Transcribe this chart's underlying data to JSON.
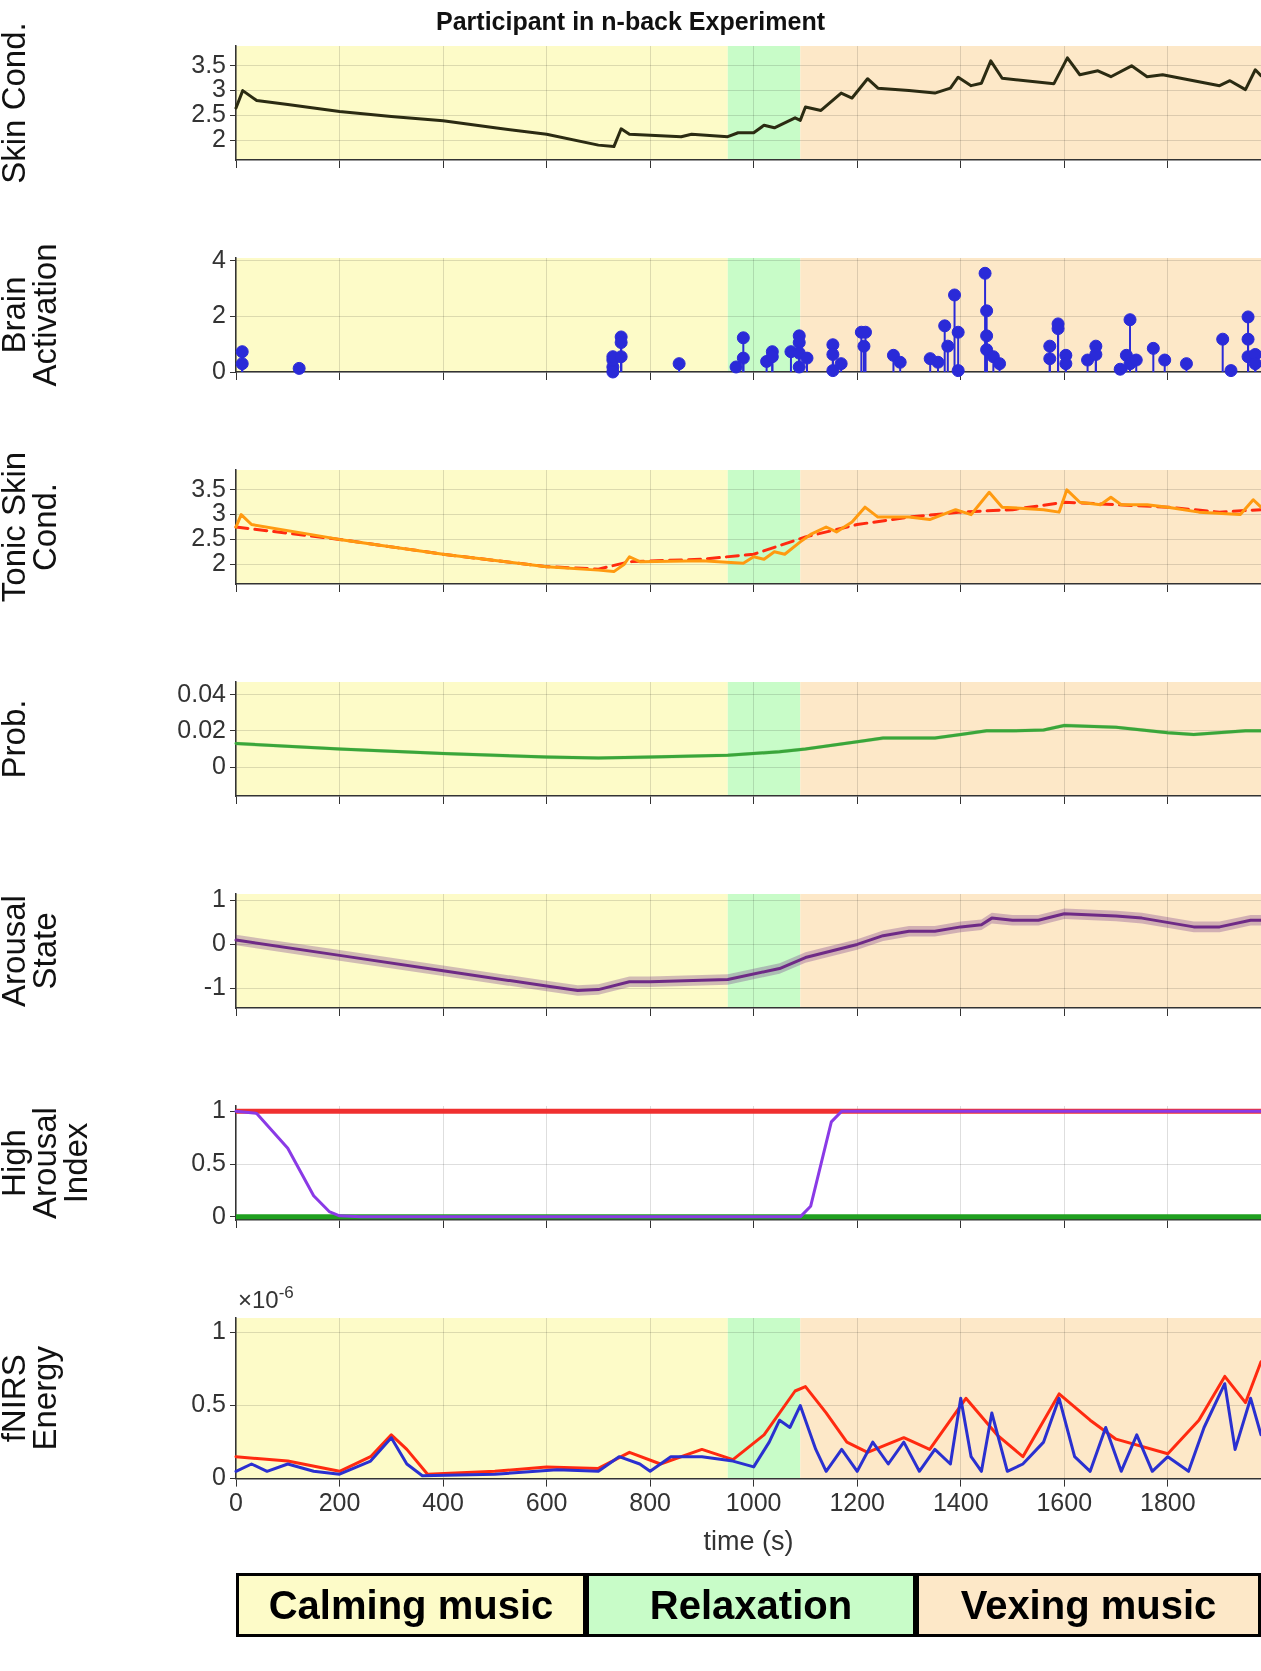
{
  "chart_data": [
    {
      "type": "line",
      "title": "Participant in n-back Experiment",
      "ylabel": "Skin Cond.",
      "xlim": [
        0,
        1980
      ],
      "xticks": [
        0,
        200,
        400,
        600,
        800,
        1000,
        1200,
        1400,
        1600,
        1800
      ],
      "ylim": [
        1.6,
        3.9
      ],
      "yticks": [
        2,
        2.5,
        3,
        3.5
      ],
      "grid": true,
      "tick_labels": "y",
      "bands": [
        {
          "axis": "x",
          "from": 0,
          "to": 950,
          "color": "#fdfbc8"
        },
        {
          "axis": "x",
          "from": 950,
          "to": 1090,
          "color": "#c8fcc8"
        },
        {
          "axis": "x",
          "from": 1090,
          "to": 1980,
          "color": "#fde8c8"
        }
      ],
      "series": [
        {
          "color": "#2b2b12",
          "x": [
            0,
            13,
            40,
            100,
            200,
            300,
            400,
            500,
            600,
            700,
            730,
            744,
            760,
            800,
            860,
            880,
            950,
            970,
            1000,
            1020,
            1040,
            1060,
            1080,
            1090,
            1100,
            1130,
            1169,
            1190,
            1220,
            1240,
            1300,
            1350,
            1380,
            1395,
            1420,
            1440,
            1458,
            1480,
            1580,
            1606,
            1630,
            1665,
            1690,
            1730,
            1760,
            1790,
            1900,
            1920,
            1950,
            1969,
            1980
          ],
          "values": [
            2.65,
            3.0,
            2.8,
            2.72,
            2.58,
            2.48,
            2.39,
            2.25,
            2.12,
            1.9,
            1.87,
            2.23,
            2.12,
            2.1,
            2.07,
            2.12,
            2.07,
            2.15,
            2.15,
            2.3,
            2.25,
            2.35,
            2.45,
            2.4,
            2.67,
            2.6,
            2.95,
            2.85,
            3.24,
            3.05,
            3.0,
            2.95,
            3.05,
            3.27,
            3.1,
            3.15,
            3.6,
            3.25,
            3.14,
            3.66,
            3.32,
            3.4,
            3.28,
            3.5,
            3.28,
            3.32,
            3.1,
            3.2,
            3.02,
            3.42,
            3.3
          ]
        }
      ]
    },
    {
      "type": "lollipop",
      "ylabel": "Brain Activation",
      "xlim": [
        0,
        1980
      ],
      "xticks": [
        0,
        200,
        400,
        600,
        800,
        1000,
        1200,
        1400,
        1600,
        1800
      ],
      "ylim": [
        0,
        4.1
      ],
      "yticks": [
        0,
        2,
        4
      ],
      "grid": true,
      "tick_labels": "y",
      "marker": "circle",
      "bands": [
        {
          "axis": "x",
          "from": 0,
          "to": 950,
          "color": "#fdfbc8"
        },
        {
          "axis": "x",
          "from": 950,
          "to": 1090,
          "color": "#c8fcc8"
        },
        {
          "axis": "x",
          "from": 1090,
          "to": 1980,
          "color": "#fde8c8"
        }
      ],
      "series": [
        {
          "color": "#2a2ad8",
          "x": [
            12,
            12,
            122,
            728,
            728,
            728,
            728,
            744,
            744,
            744,
            856,
            966,
            980,
            980,
            1025,
            1036,
            1036,
            1072,
            1088,
            1088,
            1088,
            1088,
            1103,
            1153,
            1153,
            1153,
            1169,
            1208,
            1213,
            1216,
            1270,
            1283,
            1341,
            1356,
            1369,
            1375,
            1388,
            1395,
            1395,
            1447,
            1450,
            1450,
            1450,
            1463,
            1475,
            1572,
            1572,
            1588,
            1588,
            1603,
            1603,
            1645,
            1661,
            1661,
            1708,
            1720,
            1727,
            1727,
            1739,
            1772,
            1794,
            1836,
            1906,
            1922,
            1955,
            1955,
            1955,
            1969,
            1969
          ],
          "values": [
            0.73,
            0.3,
            0.13,
            0.18,
            0,
            0.43,
            0.55,
            1.26,
            1.06,
            0.55,
            0.3,
            0.18,
            1.23,
            0.5,
            0.38,
            0.73,
            0.55,
            0.73,
            1.3,
            1.06,
            0.18,
            0.68,
            0.5,
            0.98,
            0.63,
            0.05,
            0.3,
            1.43,
            0.93,
            1.43,
            0.6,
            0.35,
            0.48,
            0.35,
            1.66,
            0.93,
            2.77,
            1.43,
            0.05,
            3.55,
            2.2,
            1.3,
            0.8,
            0.55,
            0.3,
            0.93,
            0.48,
            1.73,
            1.56,
            0.6,
            0.3,
            0.43,
            0.93,
            0.63,
            0.1,
            0.6,
            1.88,
            0.3,
            0.43,
            0.85,
            0.43,
            0.3,
            1.18,
            0.05,
            1.98,
            1.18,
            0.55,
            0.63,
            0.3
          ]
        }
      ]
    },
    {
      "type": "line",
      "ylabel": "Tonic Skin Cond.",
      "xlim": [
        0,
        1980
      ],
      "xticks": [
        0,
        200,
        400,
        600,
        800,
        1000,
        1200,
        1400,
        1600,
        1800
      ],
      "ylim": [
        1.6,
        3.9
      ],
      "yticks": [
        2,
        2.5,
        3,
        3.5
      ],
      "grid": true,
      "tick_labels": "y",
      "bands": [
        {
          "axis": "x",
          "from": 0,
          "to": 950,
          "color": "#fdfbc8"
        },
        {
          "axis": "x",
          "from": 950,
          "to": 1090,
          "color": "#c8fcc8"
        },
        {
          "axis": "x",
          "from": 1090,
          "to": 1980,
          "color": "#fde8c8"
        }
      ],
      "series": [
        {
          "color": "#ff9a10",
          "x": [
            0,
            10,
            30,
            200,
            400,
            600,
            700,
            730,
            750,
            760,
            780,
            900,
            980,
            1000,
            1020,
            1040,
            1060,
            1090,
            1110,
            1140,
            1160,
            1190,
            1215,
            1240,
            1300,
            1340,
            1390,
            1420,
            1455,
            1480,
            1560,
            1590,
            1605,
            1630,
            1670,
            1690,
            1710,
            1760,
            1800,
            1860,
            1940,
            1965,
            1980
          ],
          "values": [
            2.75,
            3.0,
            2.8,
            2.5,
            2.2,
            1.95,
            1.88,
            1.85,
            2.0,
            2.15,
            2.05,
            2.07,
            2.02,
            2.15,
            2.1,
            2.25,
            2.2,
            2.45,
            2.6,
            2.75,
            2.65,
            2.85,
            3.15,
            2.95,
            2.95,
            2.9,
            3.1,
            3.0,
            3.45,
            3.15,
            3.1,
            3.05,
            3.5,
            3.25,
            3.2,
            3.35,
            3.2,
            3.2,
            3.15,
            3.05,
            3.0,
            3.3,
            3.15
          ]
        },
        {
          "color": "#ff2a10",
          "line_style": "dashed",
          "x": [
            0,
            200,
            400,
            600,
            700,
            760,
            900,
            1000,
            1100,
            1200,
            1300,
            1400,
            1500,
            1600,
            1700,
            1800,
            1900,
            1980
          ],
          "values": [
            2.75,
            2.5,
            2.2,
            1.95,
            1.9,
            2.05,
            2.1,
            2.2,
            2.55,
            2.8,
            2.95,
            3.05,
            3.1,
            3.25,
            3.2,
            3.15,
            3.05,
            3.1
          ]
        }
      ]
    },
    {
      "type": "line",
      "ylabel": "Prob.",
      "xlim": [
        0,
        1980
      ],
      "xticks": [
        0,
        200,
        400,
        600,
        800,
        1000,
        1200,
        1400,
        1600,
        1800
      ],
      "ylim": [
        -0.016,
        0.047
      ],
      "yticks": [
        0,
        0.02,
        0.04
      ],
      "grid": true,
      "tick_labels": "y",
      "bands": [
        {
          "axis": "x",
          "from": 0,
          "to": 950,
          "color": "#fdfbc8"
        },
        {
          "axis": "x",
          "from": 950,
          "to": 1090,
          "color": "#c8fcc8"
        },
        {
          "axis": "x",
          "from": 1090,
          "to": 1980,
          "color": "#fde8c8"
        }
      ],
      "series": [
        {
          "color": "#3aa63a",
          "x": [
            0,
            200,
            400,
            600,
            700,
            800,
            950,
            1050,
            1100,
            1200,
            1250,
            1350,
            1400,
            1450,
            1500,
            1560,
            1600,
            1700,
            1800,
            1850,
            1950,
            1980
          ],
          "values": [
            0.013,
            0.01,
            0.0075,
            0.0055,
            0.005,
            0.0055,
            0.0065,
            0.0085,
            0.01,
            0.014,
            0.016,
            0.016,
            0.018,
            0.02,
            0.02,
            0.0205,
            0.023,
            0.022,
            0.019,
            0.018,
            0.02,
            0.02
          ],
          "lower": [
            0.012,
            0.009,
            0.0065,
            0.0045,
            0.004,
            0.0045,
            0.0055,
            0.0075,
            0.009,
            0.013,
            0.015,
            0.015,
            0.017,
            0.019,
            0.019,
            0.0195,
            0.022,
            0.021,
            0.018,
            0.017,
            0.019,
            0.019
          ],
          "upper": [
            0.014,
            0.011,
            0.0085,
            0.0065,
            0.006,
            0.0065,
            0.0075,
            0.0095,
            0.011,
            0.015,
            0.017,
            0.017,
            0.019,
            0.021,
            0.021,
            0.0215,
            0.024,
            0.023,
            0.02,
            0.019,
            0.021,
            0.021
          ]
        }
      ]
    },
    {
      "type": "line",
      "ylabel": "Arousal State",
      "xlim": [
        0,
        1980
      ],
      "xticks": [
        0,
        200,
        400,
        600,
        800,
        1000,
        1200,
        1400,
        1600,
        1800
      ],
      "ylim": [
        -1.45,
        1.15
      ],
      "yticks": [
        -1,
        0,
        1
      ],
      "grid": true,
      "tick_labels": "y",
      "bands": [
        {
          "axis": "x",
          "from": 0,
          "to": 950,
          "color": "#fdfbc8"
        },
        {
          "axis": "x",
          "from": 950,
          "to": 1090,
          "color": "#c8fcc8"
        },
        {
          "axis": "x",
          "from": 1090,
          "to": 1980,
          "color": "#fde8c8"
        }
      ],
      "series": [
        {
          "color": "#6e2a86",
          "x": [
            0,
            200,
            400,
            600,
            660,
            700,
            760,
            800,
            950,
            1050,
            1100,
            1200,
            1250,
            1300,
            1350,
            1400,
            1440,
            1460,
            1500,
            1550,
            1600,
            1700,
            1750,
            1850,
            1900,
            1960,
            1980
          ],
          "values": [
            0.1,
            -0.25,
            -0.6,
            -0.95,
            -1.05,
            -1.03,
            -0.85,
            -0.85,
            -0.8,
            -0.55,
            -0.3,
            0.0,
            0.2,
            0.3,
            0.3,
            0.4,
            0.45,
            0.6,
            0.55,
            0.55,
            0.7,
            0.65,
            0.6,
            0.4,
            0.4,
            0.55,
            0.55
          ],
          "lower": [
            -0.02,
            -0.37,
            -0.72,
            -1.07,
            -1.17,
            -1.15,
            -0.97,
            -0.97,
            -0.92,
            -0.67,
            -0.42,
            -0.12,
            0.08,
            0.18,
            0.18,
            0.28,
            0.33,
            0.48,
            0.43,
            0.43,
            0.58,
            0.53,
            0.48,
            0.28,
            0.28,
            0.43,
            0.43
          ],
          "upper": [
            0.22,
            -0.13,
            -0.48,
            -0.83,
            -0.93,
            -0.91,
            -0.73,
            -0.73,
            -0.68,
            -0.43,
            -0.18,
            0.12,
            0.32,
            0.42,
            0.42,
            0.52,
            0.57,
            0.72,
            0.67,
            0.67,
            0.82,
            0.77,
            0.72,
            0.52,
            0.52,
            0.67,
            0.67
          ]
        }
      ]
    },
    {
      "type": "line",
      "ylabel": "High Arousal Index",
      "xlim": [
        0,
        1980
      ],
      "xticks": [
        0,
        200,
        400,
        600,
        800,
        1000,
        1200,
        1400,
        1600,
        1800
      ],
      "ylim": [
        -0.03,
        1.05
      ],
      "yticks": [
        0,
        0.5,
        1
      ],
      "grid": true,
      "tick_labels": "y",
      "ref_lines": [
        {
          "axis": "y",
          "value": 1,
          "color": "#f03030"
        },
        {
          "axis": "y",
          "value": 0,
          "color": "#20a020"
        }
      ],
      "series": [
        {
          "color": "#8a3ae6",
          "x": [
            0,
            40,
            100,
            150,
            180,
            200,
            240,
            1090,
            1110,
            1130,
            1150,
            1170,
            1980
          ],
          "values": [
            1,
            0.98,
            0.65,
            0.2,
            0.05,
            0.01,
            0,
            0,
            0.1,
            0.5,
            0.9,
            1,
            1
          ]
        }
      ]
    },
    {
      "type": "line",
      "ylabel": "fNIRS Energy",
      "xlabel": "time (s)",
      "xlim": [
        0,
        1980
      ],
      "xticks": [
        0,
        200,
        400,
        600,
        800,
        1000,
        1200,
        1400,
        1600,
        1800
      ],
      "ylim": [
        0,
        1.1
      ],
      "yticks": [
        0,
        0.5,
        1
      ],
      "grid": true,
      "annotations": [
        "×10$^{-6}$",
        "Calming music",
        "Relaxation",
        "Vexing music"
      ],
      "bands": [
        {
          "axis": "x",
          "from": 0,
          "to": 950,
          "color": "#fdfbc8"
        },
        {
          "axis": "x",
          "from": 950,
          "to": 1090,
          "color": "#c8fcc8"
        },
        {
          "axis": "x",
          "from": 1090,
          "to": 1980,
          "color": "#fde8c8"
        }
      ],
      "series": [
        {
          "color": "#2a30d0",
          "x": [
            0,
            30,
            60,
            100,
            150,
            200,
            260,
            300,
            330,
            360,
            500,
            620,
            700,
            740,
            780,
            800,
            840,
            900,
            960,
            1000,
            1030,
            1050,
            1070,
            1090,
            1100,
            1120,
            1140,
            1170,
            1200,
            1230,
            1260,
            1290,
            1320,
            1350,
            1380,
            1400,
            1420,
            1440,
            1460,
            1490,
            1520,
            1560,
            1590,
            1620,
            1650,
            1680,
            1710,
            1740,
            1770,
            1800,
            1840,
            1870,
            1910,
            1930,
            1960,
            1980
          ],
          "values": [
            0.05,
            0.1,
            0.05,
            0.1,
            0.05,
            0.03,
            0.12,
            0.28,
            0.1,
            0.02,
            0.03,
            0.06,
            0.05,
            0.15,
            0.1,
            0.05,
            0.15,
            0.15,
            0.12,
            0.08,
            0.25,
            0.4,
            0.35,
            0.5,
            0.4,
            0.2,
            0.05,
            0.2,
            0.05,
            0.25,
            0.1,
            0.25,
            0.05,
            0.2,
            0.1,
            0.55,
            0.15,
            0.05,
            0.45,
            0.05,
            0.1,
            0.25,
            0.55,
            0.15,
            0.05,
            0.35,
            0.05,
            0.3,
            0.05,
            0.15,
            0.05,
            0.35,
            0.65,
            0.2,
            0.55,
            0.3
          ]
        },
        {
          "color": "#ff2a10",
          "x": [
            0,
            100,
            200,
            260,
            300,
            330,
            370,
            500,
            600,
            700,
            760,
            820,
            900,
            960,
            1020,
            1080,
            1100,
            1140,
            1180,
            1220,
            1290,
            1340,
            1410,
            1470,
            1520,
            1590,
            1650,
            1700,
            1800,
            1860,
            1910,
            1950,
            1980
          ],
          "values": [
            0.15,
            0.12,
            0.05,
            0.15,
            0.3,
            0.2,
            0.03,
            0.05,
            0.08,
            0.07,
            0.18,
            0.1,
            0.2,
            0.13,
            0.3,
            0.6,
            0.63,
            0.45,
            0.25,
            0.18,
            0.28,
            0.2,
            0.55,
            0.3,
            0.15,
            0.58,
            0.4,
            0.27,
            0.17,
            0.4,
            0.7,
            0.52,
            0.8
          ]
        }
      ]
    }
  ]
}
